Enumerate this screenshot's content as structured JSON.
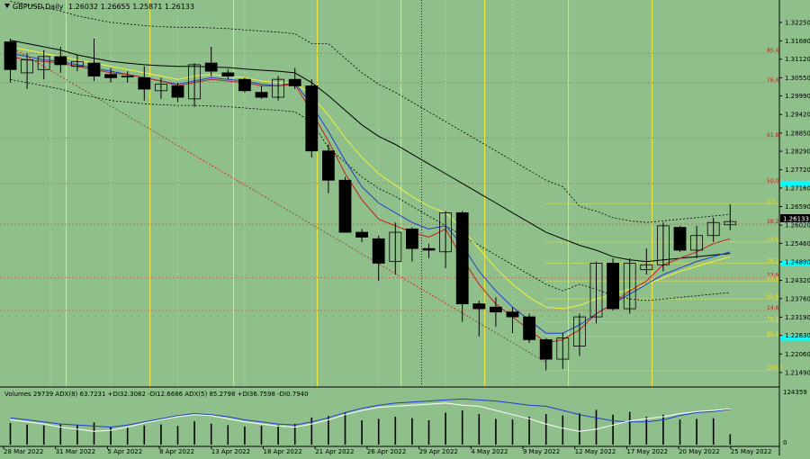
{
  "header": {
    "symbol": "GBPUSD,Daily",
    "ohlc": "1.26032 1.26655 1.25871 1.26133"
  },
  "indicator_header": "Volumes 29739  ADX(8) 63.7231 +DI32.3082 -DI12.6686  ADX(5) 85.2798 +DI36.7598 -DI0.7940",
  "current_price": "1.26133",
  "volume_scale": {
    "top": "124359",
    "bottom": "0"
  },
  "colors": {
    "background": "#8fbf8b",
    "bull_candle": "#ffffff",
    "bear_candle": "#000000",
    "ma_black": "#000000",
    "ma_blue": "#1f3fd0",
    "ma_red": "#c0201e",
    "ma_yellow": "#f2f23a",
    "fib_red": "#c86a5a",
    "fib_yellow": "#f0ec3c",
    "cyan_marker": "#00ffff"
  },
  "chart_data": [
    {
      "type": "candlestick",
      "ylim": [
        1.211,
        1.328
      ],
      "y_ticks": [
        "1.32250",
        "1.31680",
        "1.31120",
        "1.30550",
        "1.29990",
        "1.29420",
        "1.28850",
        "1.28290",
        "1.27720",
        "1.27160",
        "1.26590",
        "1.26020",
        "1.25460",
        "1.24890",
        "1.24320",
        "1.23760",
        "1.23190",
        "1.22630",
        "1.22060",
        "1.21490"
      ],
      "x_labels": [
        "28 Mar 2022",
        "31 Mar 2022",
        "5 Apr 2022",
        "8 Apr 2022",
        "13 Apr 2022",
        "18 Apr 2022",
        "21 Apr 2022",
        "26 Apr 2022",
        "29 Apr 2022",
        "4 May 2022",
        "9 May 2022",
        "12 May 2022",
        "17 May 2022",
        "20 May 2022",
        "25 May 2022"
      ],
      "candles": [
        {
          "o": 1.3165,
          "h": 1.3175,
          "l": 1.304,
          "c": 1.308
        },
        {
          "o": 1.307,
          "h": 1.313,
          "l": 1.302,
          "c": 1.311
        },
        {
          "o": 1.308,
          "h": 1.314,
          "l": 1.305,
          "c": 1.312
        },
        {
          "o": 1.312,
          "h": 1.315,
          "l": 1.307,
          "c": 1.3095
        },
        {
          "o": 1.309,
          "h": 1.3125,
          "l": 1.3075,
          "c": 1.3105
        },
        {
          "o": 1.31,
          "h": 1.3175,
          "l": 1.3045,
          "c": 1.306
        },
        {
          "o": 1.3065,
          "h": 1.3085,
          "l": 1.304,
          "c": 1.3055
        },
        {
          "o": 1.306,
          "h": 1.3075,
          "l": 1.304,
          "c": 1.306
        },
        {
          "o": 1.3055,
          "h": 1.309,
          "l": 1.2985,
          "c": 1.302
        },
        {
          "o": 1.3015,
          "h": 1.3055,
          "l": 1.299,
          "c": 1.3035
        },
        {
          "o": 1.303,
          "h": 1.304,
          "l": 1.298,
          "c": 1.2995
        },
        {
          "o": 1.299,
          "h": 1.31,
          "l": 1.2965,
          "c": 1.3095
        },
        {
          "o": 1.31,
          "h": 1.315,
          "l": 1.306,
          "c": 1.3075
        },
        {
          "o": 1.307,
          "h": 1.308,
          "l": 1.305,
          "c": 1.306
        },
        {
          "o": 1.305,
          "h": 1.3055,
          "l": 1.301,
          "c": 1.3015
        },
        {
          "o": 1.301,
          "h": 1.303,
          "l": 1.299,
          "c": 1.2995
        },
        {
          "o": 1.2995,
          "h": 1.306,
          "l": 1.2985,
          "c": 1.305
        },
        {
          "o": 1.305,
          "h": 1.3085,
          "l": 1.302,
          "c": 1.303
        },
        {
          "o": 1.303,
          "h": 1.305,
          "l": 1.281,
          "c": 1.283
        },
        {
          "o": 1.283,
          "h": 1.285,
          "l": 1.27,
          "c": 1.274
        },
        {
          "o": 1.274,
          "h": 1.275,
          "l": 1.258,
          "c": 1.258
        },
        {
          "o": 1.258,
          "h": 1.259,
          "l": 1.255,
          "c": 1.2565
        },
        {
          "o": 1.256,
          "h": 1.257,
          "l": 1.243,
          "c": 1.2485
        },
        {
          "o": 1.249,
          "h": 1.261,
          "l": 1.245,
          "c": 1.258
        },
        {
          "o": 1.259,
          "h": 1.2595,
          "l": 1.249,
          "c": 1.253
        },
        {
          "o": 1.253,
          "h": 1.2545,
          "l": 1.25,
          "c": 1.2525
        },
        {
          "o": 1.252,
          "h": 1.2645,
          "l": 1.247,
          "c": 1.264
        },
        {
          "o": 1.264,
          "h": 1.2645,
          "l": 1.2305,
          "c": 1.236
        },
        {
          "o": 1.236,
          "h": 1.237,
          "l": 1.226,
          "c": 1.2345
        },
        {
          "o": 1.235,
          "h": 1.238,
          "l": 1.229,
          "c": 1.2335
        },
        {
          "o": 1.2335,
          "h": 1.235,
          "l": 1.227,
          "c": 1.232
        },
        {
          "o": 1.232,
          "h": 1.233,
          "l": 1.224,
          "c": 1.225
        },
        {
          "o": 1.225,
          "h": 1.2255,
          "l": 1.2155,
          "c": 1.219
        },
        {
          "o": 1.219,
          "h": 1.227,
          "l": 1.216,
          "c": 1.2255
        },
        {
          "o": 1.223,
          "h": 1.233,
          "l": 1.22,
          "c": 1.232
        },
        {
          "o": 1.232,
          "h": 1.249,
          "l": 1.23,
          "c": 1.2485
        },
        {
          "o": 1.2485,
          "h": 1.25,
          "l": 1.234,
          "c": 1.2345
        },
        {
          "o": 1.2345,
          "h": 1.25,
          "l": 1.233,
          "c": 1.2485
        },
        {
          "o": 1.2465,
          "h": 1.253,
          "l": 1.245,
          "c": 1.248
        },
        {
          "o": 1.248,
          "h": 1.261,
          "l": 1.246,
          "c": 1.26
        },
        {
          "o": 1.2595,
          "h": 1.26,
          "l": 1.252,
          "c": 1.2525
        },
        {
          "o": 1.2525,
          "h": 1.26,
          "l": 1.25,
          "c": 1.257
        },
        {
          "o": 1.257,
          "h": 1.2625,
          "l": 1.255,
          "c": 1.261
        },
        {
          "o": 1.2603,
          "h": 1.2666,
          "l": 1.2587,
          "c": 1.2613
        }
      ],
      "moving_averages": [
        {
          "color": "#000000",
          "style": "solid",
          "values": [
            1.317,
            1.316,
            1.315,
            1.314,
            1.3125,
            1.3115,
            1.3105,
            1.31,
            1.3095,
            1.3092,
            1.309,
            1.309,
            1.3088,
            1.3086,
            1.3082,
            1.3078,
            1.3075,
            1.307,
            1.304,
            1.3,
            1.2955,
            1.291,
            1.2875,
            1.285,
            1.282,
            1.279,
            1.276,
            1.273,
            1.27,
            1.267,
            1.264,
            1.261,
            1.258,
            1.256,
            1.254,
            1.2525,
            1.2505,
            1.2495,
            1.249,
            1.2495,
            1.25,
            1.2505,
            1.251,
            1.2515
          ]
        },
        {
          "color": "#f2f23a",
          "style": "solid",
          "values": [
            1.315,
            1.314,
            1.313,
            1.312,
            1.311,
            1.31,
            1.309,
            1.308,
            1.307,
            1.306,
            1.305,
            1.306,
            1.3065,
            1.306,
            1.3055,
            1.3045,
            1.304,
            1.304,
            1.3,
            1.294,
            1.287,
            1.281,
            1.276,
            1.2725,
            1.269,
            1.266,
            1.264,
            1.259,
            1.253,
            1.247,
            1.242,
            1.238,
            1.235,
            1.2345,
            1.2355,
            1.2375,
            1.239,
            1.2405,
            1.242,
            1.244,
            1.246,
            1.2475,
            1.249,
            1.2505
          ]
        },
        {
          "color": "#1f3fd0",
          "style": "solid",
          "values": [
            1.313,
            1.312,
            1.311,
            1.3105,
            1.3095,
            1.3085,
            1.3075,
            1.3065,
            1.3055,
            1.3045,
            1.3035,
            1.3045,
            1.3055,
            1.305,
            1.3045,
            1.3035,
            1.303,
            1.304,
            1.297,
            1.289,
            1.28,
            1.272,
            1.267,
            1.264,
            1.261,
            1.259,
            1.26,
            1.254,
            1.246,
            1.24,
            1.235,
            1.231,
            1.227,
            1.227,
            1.2295,
            1.233,
            1.236,
            1.239,
            1.242,
            1.245,
            1.247,
            1.249,
            1.2505,
            1.252
          ]
        },
        {
          "color": "#c0201e",
          "style": "solid",
          "values": [
            1.312,
            1.311,
            1.3105,
            1.31,
            1.309,
            1.308,
            1.307,
            1.3065,
            1.3055,
            1.3045,
            1.303,
            1.304,
            1.305,
            1.3045,
            1.304,
            1.303,
            1.303,
            1.3035,
            1.295,
            1.286,
            1.276,
            1.268,
            1.262,
            1.26,
            1.258,
            1.2565,
            1.259,
            1.25,
            1.242,
            1.236,
            1.232,
            1.228,
            1.224,
            1.225,
            1.228,
            1.233,
            1.236,
            1.24,
            1.243,
            1.248,
            1.25,
            1.252,
            1.2545,
            1.256
          ]
        }
      ],
      "fib_red_levels": [
        {
          "label": "85.4",
          "value": 1.313
        },
        {
          "label": "76.4",
          "value": 1.304
        },
        {
          "label": "61.8",
          "value": 1.287
        },
        {
          "label": "50.0",
          "value": 1.273
        },
        {
          "label": "38.2",
          "value": 1.2605
        },
        {
          "label": "23.6",
          "value": 1.244
        },
        {
          "label": "14.6",
          "value": 1.234
        }
      ],
      "fib_yellow_levels": [
        {
          "label": "0.0",
          "value": 1.2667
        },
        {
          "label": "23.6",
          "value": 1.255
        },
        {
          "label": "38.2",
          "value": 1.2485
        },
        {
          "label": "50.0",
          "value": 1.243
        },
        {
          "label": "61.8",
          "value": 1.2375
        },
        {
          "label": "76.4",
          "value": 1.2305
        },
        {
          "label": "85.4",
          "value": 1.226
        },
        {
          "label": "100.0",
          "value": 1.2155
        }
      ]
    },
    {
      "type": "bar",
      "title": "Volumes",
      "ylim": [
        0,
        124359
      ],
      "volumes": [
        62000,
        58000,
        55000,
        60000,
        57000,
        64000,
        52000,
        50000,
        55000,
        58000,
        54000,
        67000,
        60000,
        56000,
        52000,
        54000,
        56000,
        60000,
        78000,
        82000,
        92000,
        70000,
        74000,
        80000,
        76000,
        70000,
        92000,
        98000,
        88000,
        74000,
        72000,
        80000,
        88000,
        84000,
        90000,
        100000,
        86000,
        94000,
        80000,
        86000,
        72000,
        74000,
        76000,
        29739
      ],
      "adx_lines": [
        {
          "color": "#1f3fd0",
          "values": [
            48,
            44,
            40,
            36,
            34,
            32,
            30,
            34,
            40,
            46,
            52,
            56,
            54,
            50,
            44,
            40,
            36,
            34,
            40,
            48,
            58,
            66,
            72,
            76,
            78,
            80,
            82,
            84,
            82,
            80,
            76,
            72,
            70,
            62,
            54,
            48,
            42,
            40,
            40,
            44,
            52,
            58,
            60,
            64
          ]
        },
        {
          "color": "#ffffff",
          "values": [
            44,
            40,
            36,
            30,
            26,
            22,
            24,
            30,
            38,
            44,
            50,
            54,
            52,
            46,
            40,
            36,
            32,
            30,
            36,
            44,
            54,
            62,
            68,
            70,
            72,
            74,
            76,
            72,
            70,
            62,
            54,
            46,
            36,
            28,
            22,
            26,
            34,
            42,
            46,
            50,
            56,
            60,
            62,
            65
          ]
        }
      ]
    }
  ]
}
